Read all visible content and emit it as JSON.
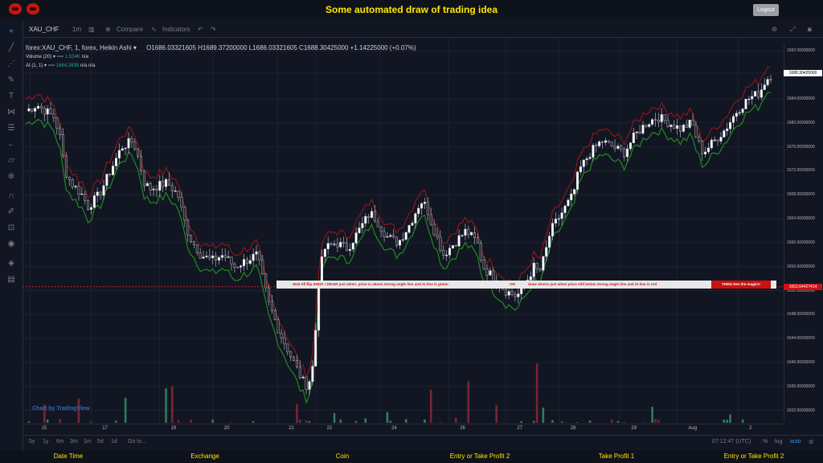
{
  "app": {
    "title": "Some automated draw of trading idea",
    "logout": "Logout"
  },
  "toolbar": {
    "symbol": "XAU_CHF",
    "interval": "1m",
    "compare": "Compare",
    "indicators": "Indicators"
  },
  "legend": {
    "main": "forex:XAU_CHF, 1, forex, Heikin Ashi",
    "ohlc": "O1686.03321605  H1689.37200000  L1686.03321605  C1688.30425000  +1.14225000 (+0.07%)",
    "volume_name": "Volume (20)",
    "volume_value": "1.534K",
    "volume_na": "n/a",
    "ai_name": "AI (1, 1)",
    "ai_value": "1684.3839",
    "ai_na1": "n/a",
    "ai_na2": "n/a"
  },
  "price_axis": [
    "1692.00000000",
    "1688.30425000",
    "1684.00000000",
    "1680.00000000",
    "1676.00000000",
    "1672.00000000",
    "1668.00000000",
    "1664.00000000",
    "1660.00000000",
    "1656.00000000",
    "1652.00000000",
    "1648.00000000",
    "1644.00000000",
    "1640.00000000",
    "1636.00000000",
    "1632.00000000"
  ],
  "current_price": "1688.30425000",
  "line_price": "1652.64427414",
  "time_axis": [
    "15",
    "17",
    "19",
    "20",
    "21",
    "22",
    "24",
    "26",
    "27",
    "28",
    "29",
    "Aug",
    "2"
  ],
  "banner": {
    "part1": "Wait till flip ENDS  !    DRAW just when:  price is above strong angle line and AI line is green",
    "or": "OR",
    "part2": "draw shorts just when price still below strong angle line and AI line is red",
    "magic": "THEN See the magic!!"
  },
  "watermark": "Chart by TradingView",
  "bottom_nav": {
    "ranges": [
      "5y",
      "1y",
      "6m",
      "3m",
      "1m",
      "5d",
      "1d"
    ],
    "goto": "Go to...",
    "clock": "07:12:47 (UTC)",
    "percent": "%",
    "log": "log",
    "auto": "auto"
  },
  "footer": [
    "Date Time",
    "Exchange",
    "Coin",
    "Entry or Take Profit 2",
    "Take Profit 1",
    "Entry or Take Profit 2"
  ],
  "colors": {
    "accent": "#ffe900",
    "up": "#ffffff",
    "down": "#2a2a2a",
    "ai_green": "#1e8c1e",
    "ai_red": "#a01818",
    "vol_up": "#2e7d5a",
    "vol_down": "#7a2432",
    "line": "#c42020"
  },
  "chart_data": {
    "type": "candlestick",
    "title": "",
    "ylim": [
      1631,
      1693
    ],
    "x_ticks": [
      "15",
      "17",
      "19",
      "20",
      "21",
      "22",
      "24",
      "26",
      "27",
      "28",
      "29",
      "Aug",
      "2"
    ],
    "price_path": [
      [
        0,
        1682
      ],
      [
        2,
        1683
      ],
      [
        5,
        1681
      ],
      [
        6,
        1678
      ],
      [
        7,
        1672
      ],
      [
        8,
        1670
      ],
      [
        10,
        1668
      ],
      [
        11,
        1666
      ],
      [
        13,
        1668
      ],
      [
        15,
        1672
      ],
      [
        17,
        1676
      ],
      [
        19,
        1677
      ],
      [
        20,
        1674
      ],
      [
        21,
        1670
      ],
      [
        22,
        1669
      ],
      [
        25,
        1670
      ],
      [
        27,
        1668
      ],
      [
        28,
        1664
      ],
      [
        29,
        1661
      ],
      [
        31,
        1658
      ],
      [
        33,
        1657
      ],
      [
        35,
        1658
      ],
      [
        37,
        1656
      ],
      [
        39,
        1657
      ],
      [
        41,
        1658
      ],
      [
        42,
        1654
      ],
      [
        43,
        1650
      ],
      [
        45,
        1645
      ],
      [
        47,
        1641
      ],
      [
        49,
        1637
      ],
      [
        50,
        1636
      ],
      [
        51,
        1640
      ],
      [
        52,
        1655
      ],
      [
        53,
        1659
      ],
      [
        55,
        1660
      ],
      [
        57,
        1659
      ],
      [
        59,
        1662
      ],
      [
        61,
        1665
      ],
      [
        62,
        1664
      ],
      [
        64,
        1661
      ],
      [
        66,
        1660
      ],
      [
        68,
        1663
      ],
      [
        70,
        1667
      ],
      [
        71,
        1666
      ],
      [
        72,
        1663
      ],
      [
        74,
        1658
      ],
      [
        76,
        1660
      ],
      [
        78,
        1662
      ],
      [
        80,
        1660
      ],
      [
        81,
        1656
      ],
      [
        83,
        1654
      ],
      [
        85,
        1652
      ],
      [
        87,
        1651
      ],
      [
        89,
        1654
      ],
      [
        90,
        1656
      ],
      [
        91,
        1655
      ],
      [
        92,
        1658
      ],
      [
        93,
        1662
      ],
      [
        95,
        1665
      ],
      [
        97,
        1668
      ],
      [
        98,
        1672
      ],
      [
        100,
        1675
      ],
      [
        102,
        1677
      ],
      [
        104,
        1676
      ],
      [
        106,
        1675
      ],
      [
        108,
        1678
      ],
      [
        110,
        1680
      ],
      [
        112,
        1681
      ],
      [
        114,
        1680
      ],
      [
        116,
        1679
      ],
      [
        118,
        1680
      ],
      [
        119,
        1677
      ],
      [
        120,
        1675
      ],
      [
        122,
        1677
      ],
      [
        124,
        1679
      ],
      [
        126,
        1682
      ],
      [
        128,
        1684
      ],
      [
        130,
        1685
      ],
      [
        131,
        1687
      ],
      [
        132,
        1688
      ]
    ],
    "volume_range": [
      0,
      1.534
    ]
  }
}
